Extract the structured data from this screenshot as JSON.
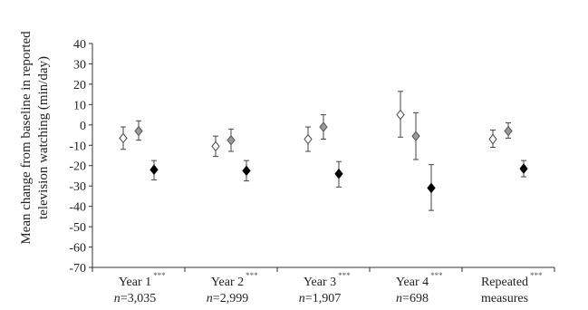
{
  "chart_data": {
    "type": "scatter",
    "ylabel_lines": [
      "Mean change from baseline in reported",
      "television watching (min/day)"
    ],
    "ylim": [
      -70,
      40
    ],
    "yticks": [
      40,
      30,
      20,
      10,
      0,
      -10,
      -20,
      -30,
      -40,
      -50,
      -60,
      -70
    ],
    "categories": [
      {
        "line1": "Year 1",
        "n_prefix": "n",
        "n_value": "=3,035",
        "sig": "***"
      },
      {
        "line1": "Year 2",
        "n_prefix": "n",
        "n_value": "=2,999",
        "sig": "***"
      },
      {
        "line1": "Year 3",
        "n_prefix": "n",
        "n_value": "=1,907",
        "sig": "***"
      },
      {
        "line1": "Year 4",
        "n_prefix": "n",
        "n_value": "=698",
        "sig": "***"
      },
      {
        "line1": "Repeated",
        "n_prefix": "",
        "n_value": "measures",
        "sig": "***"
      }
    ],
    "series": [
      {
        "marker": "open-diamond",
        "fill": "#ffffff",
        "stroke": "#444444",
        "points": [
          {
            "y": -6.5,
            "lo": -12,
            "hi": -1
          },
          {
            "y": -10.5,
            "lo": -15.5,
            "hi": -5.5
          },
          {
            "y": -7,
            "lo": -13,
            "hi": -1
          },
          {
            "y": 5,
            "lo": -6,
            "hi": 16.5
          },
          {
            "y": -7,
            "lo": -11,
            "hi": -2.5
          }
        ]
      },
      {
        "marker": "grey-diamond",
        "fill": "#999999",
        "stroke": "#555555",
        "points": [
          {
            "y": -3,
            "lo": -7.5,
            "hi": 2
          },
          {
            "y": -7.5,
            "lo": -13,
            "hi": -2
          },
          {
            "y": -1,
            "lo": -7,
            "hi": 5
          },
          {
            "y": -5.5,
            "lo": -17,
            "hi": 6
          },
          {
            "y": -3,
            "lo": -6.5,
            "hi": 1
          }
        ]
      },
      {
        "marker": "black-diamond",
        "fill": "#000000",
        "stroke": "#000000",
        "points": [
          {
            "y": -22,
            "lo": -27,
            "hi": -17.5
          },
          {
            "y": -22.5,
            "lo": -27.5,
            "hi": -17.5
          },
          {
            "y": -24,
            "lo": -30.5,
            "hi": -18
          },
          {
            "y": -31,
            "lo": -42,
            "hi": -19.5
          },
          {
            "y": -21.5,
            "lo": -25.5,
            "hi": -17.5
          }
        ]
      }
    ]
  }
}
